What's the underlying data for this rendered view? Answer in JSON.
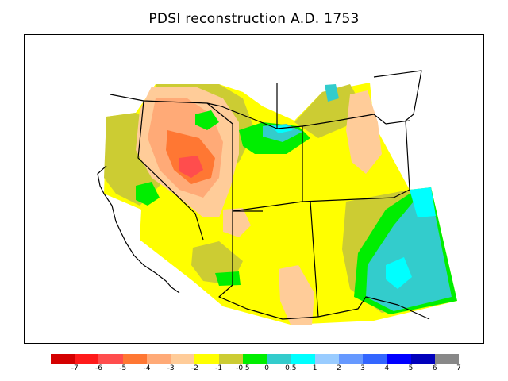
{
  "title": "PDSI reconstruction A.D. 1753",
  "legend": {
    "colors": [
      "#d40000",
      "#ff1a1a",
      "#ff4d4d",
      "#ff7733",
      "#ffaa77",
      "#ffcc99",
      "#ffff00",
      "#cccc33",
      "#00ee00",
      "#33cccc",
      "#00ffff",
      "#99ccff",
      "#6699ff",
      "#3366ff",
      "#0000ff",
      "#0000bb",
      "#888888"
    ],
    "ticks": [
      "-7",
      "-6",
      "-5",
      "-4",
      "-3",
      "-2",
      "-1",
      "-0.5",
      "0",
      "0.5",
      "1",
      "2",
      "3",
      "4",
      "5",
      "6",
      "7"
    ]
  },
  "palette": {
    "yellow": "#ffff00",
    "olive": "#cccc33",
    "tan": "#ffcc99",
    "salmon": "#ffaa77",
    "orange": "#ff7733",
    "red": "#ff4d4d",
    "green": "#00ee00",
    "teal": "#33cccc",
    "cyan": "#00ffff"
  }
}
